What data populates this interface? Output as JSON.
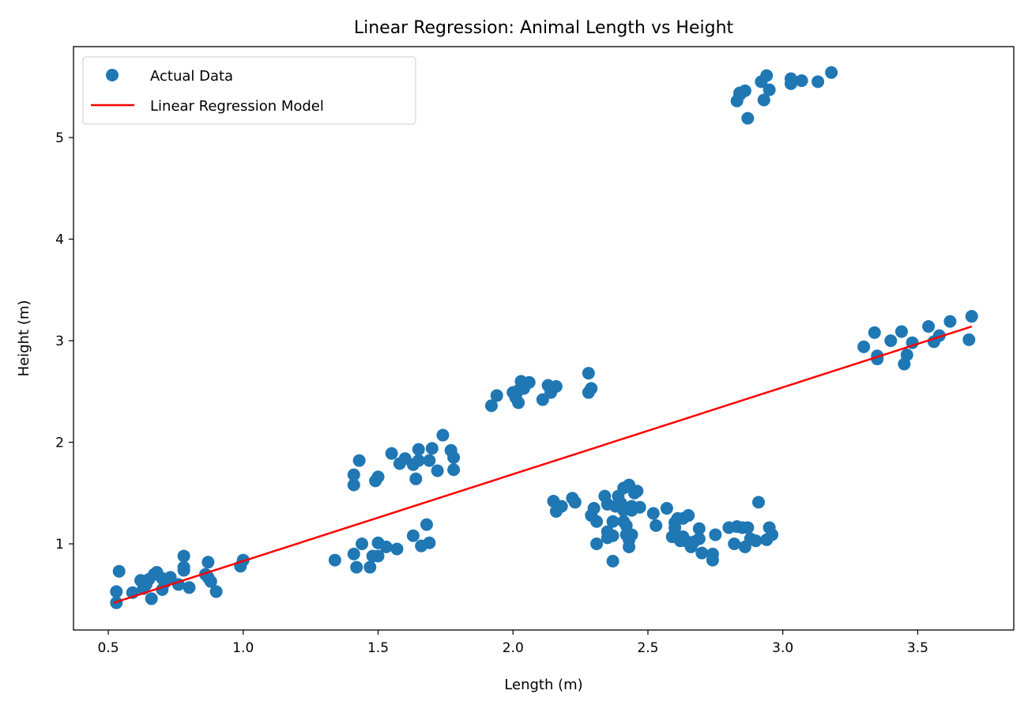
{
  "chart_data": {
    "type": "scatter",
    "title": "Linear Regression: Animal Length vs Height",
    "xlabel": "Length (m)",
    "ylabel": "Height (m)",
    "xlim": [
      0.371,
      3.856
    ],
    "ylim": [
      0.152,
      5.895
    ],
    "xticks": [
      0.5,
      1.0,
      1.5,
      2.0,
      2.5,
      3.0,
      3.5
    ],
    "xtick_labels": [
      "0.5",
      "1.0",
      "1.5",
      "2.0",
      "2.5",
      "3.0",
      "3.5"
    ],
    "yticks": [
      1,
      2,
      3,
      4,
      5
    ],
    "ytick_labels": [
      "1",
      "2",
      "3",
      "4",
      "5"
    ],
    "grid": false,
    "legend": {
      "placement": "top-left",
      "entries": [
        "Actual Data",
        "Linear Regression Model"
      ]
    },
    "series": [
      {
        "name": "Actual Data",
        "kind": "scatter",
        "color": "#1f77b4",
        "points": [
          [
            0.53,
            0.42
          ],
          [
            0.53,
            0.53
          ],
          [
            0.54,
            0.73
          ],
          [
            0.59,
            0.52
          ],
          [
            0.62,
            0.64
          ],
          [
            0.64,
            0.6
          ],
          [
            0.65,
            0.65
          ],
          [
            0.66,
            0.46
          ],
          [
            0.67,
            0.7
          ],
          [
            0.68,
            0.72
          ],
          [
            0.7,
            0.55
          ],
          [
            0.71,
            0.62
          ],
          [
            0.73,
            0.67
          ],
          [
            0.76,
            0.6
          ],
          [
            0.78,
            0.74
          ],
          [
            0.78,
            0.88
          ],
          [
            0.78,
            0.77
          ],
          [
            0.8,
            0.57
          ],
          [
            0.87,
            0.82
          ],
          [
            0.86,
            0.7
          ],
          [
            0.87,
            0.67
          ],
          [
            0.88,
            0.63
          ],
          [
            0.9,
            0.53
          ],
          [
            0.99,
            0.78
          ],
          [
            1.0,
            0.84
          ],
          [
            0.63,
            0.56
          ],
          [
            0.7,
            0.66
          ],
          [
            1.34,
            0.84
          ],
          [
            1.41,
            0.9
          ],
          [
            1.42,
            0.77
          ],
          [
            1.44,
            1.0
          ],
          [
            1.47,
            0.77
          ],
          [
            1.48,
            0.88
          ],
          [
            1.5,
            0.88
          ],
          [
            1.5,
            1.01
          ],
          [
            1.53,
            0.97
          ],
          [
            1.57,
            0.95
          ],
          [
            1.63,
            1.08
          ],
          [
            1.66,
            0.98
          ],
          [
            1.68,
            1.19
          ],
          [
            1.69,
            1.01
          ],
          [
            1.41,
            1.68
          ],
          [
            1.41,
            1.58
          ],
          [
            1.43,
            1.82
          ],
          [
            1.49,
            1.62
          ],
          [
            1.5,
            1.66
          ],
          [
            1.55,
            1.89
          ],
          [
            1.58,
            1.79
          ],
          [
            1.6,
            1.84
          ],
          [
            1.63,
            1.78
          ],
          [
            1.64,
            1.64
          ],
          [
            1.65,
            1.93
          ],
          [
            1.65,
            1.82
          ],
          [
            1.69,
            1.82
          ],
          [
            1.7,
            1.94
          ],
          [
            1.72,
            1.72
          ],
          [
            1.74,
            2.07
          ],
          [
            1.77,
            1.92
          ],
          [
            1.78,
            1.85
          ],
          [
            1.78,
            1.73
          ],
          [
            1.92,
            2.36
          ],
          [
            1.94,
            2.46
          ],
          [
            2.0,
            2.49
          ],
          [
            2.01,
            2.44
          ],
          [
            2.02,
            2.51
          ],
          [
            2.02,
            2.39
          ],
          [
            2.03,
            2.6
          ],
          [
            2.04,
            2.53
          ],
          [
            2.06,
            2.59
          ],
          [
            2.11,
            2.42
          ],
          [
            2.13,
            2.56
          ],
          [
            2.14,
            2.49
          ],
          [
            2.16,
            2.55
          ],
          [
            2.28,
            2.68
          ],
          [
            2.28,
            2.49
          ],
          [
            2.29,
            2.53
          ],
          [
            2.15,
            1.42
          ],
          [
            2.16,
            1.32
          ],
          [
            2.18,
            1.37
          ],
          [
            2.22,
            1.45
          ],
          [
            2.23,
            1.41
          ],
          [
            2.29,
            1.28
          ],
          [
            2.3,
            1.35
          ],
          [
            2.31,
            1.22
          ],
          [
            2.31,
            1.0
          ],
          [
            2.34,
            1.47
          ],
          [
            2.35,
            1.12
          ],
          [
            2.35,
            1.06
          ],
          [
            2.35,
            1.39
          ],
          [
            2.37,
            0.83
          ],
          [
            2.37,
            1.22
          ],
          [
            2.37,
            1.08
          ],
          [
            2.38,
            1.37
          ],
          [
            2.39,
            1.47
          ],
          [
            2.4,
            1.4
          ],
          [
            2.41,
            1.55
          ],
          [
            2.41,
            1.22
          ],
          [
            2.41,
            1.33
          ],
          [
            2.42,
            1.09
          ],
          [
            2.42,
            1.18
          ],
          [
            2.43,
            1.58
          ],
          [
            2.43,
            1.04
          ],
          [
            2.44,
            1.37
          ],
          [
            2.43,
            0.97
          ],
          [
            2.44,
            1.09
          ],
          [
            2.45,
            1.5
          ],
          [
            2.44,
            1.33
          ],
          [
            2.46,
            1.52
          ],
          [
            2.47,
            1.36
          ],
          [
            2.52,
            1.3
          ],
          [
            2.53,
            1.18
          ],
          [
            2.57,
            1.35
          ],
          [
            2.59,
            1.07
          ],
          [
            2.6,
            1.21
          ],
          [
            2.6,
            1.16
          ],
          [
            2.6,
            1.1
          ],
          [
            2.61,
            1.25
          ],
          [
            2.62,
            1.03
          ],
          [
            2.63,
            1.25
          ],
          [
            2.63,
            1.07
          ],
          [
            2.64,
            1.03
          ],
          [
            2.65,
            1.28
          ],
          [
            2.66,
            0.97
          ],
          [
            2.67,
            1.02
          ],
          [
            2.69,
            1.15
          ],
          [
            2.69,
            1.05
          ],
          [
            2.7,
            0.91
          ],
          [
            2.74,
            0.9
          ],
          [
            2.74,
            0.84
          ],
          [
            2.75,
            1.09
          ],
          [
            2.8,
            1.16
          ],
          [
            2.82,
            1.0
          ],
          [
            2.83,
            1.17
          ],
          [
            2.85,
            1.16
          ],
          [
            2.87,
            1.16
          ],
          [
            2.86,
            0.97
          ],
          [
            2.88,
            1.05
          ],
          [
            2.91,
            1.41
          ],
          [
            2.94,
            1.04
          ],
          [
            2.95,
            1.16
          ],
          [
            2.96,
            1.09
          ],
          [
            2.9,
            1.03
          ],
          [
            2.83,
            5.36
          ],
          [
            2.84,
            5.42
          ],
          [
            2.84,
            5.44
          ],
          [
            2.86,
            5.46
          ],
          [
            2.87,
            5.19
          ],
          [
            2.92,
            5.55
          ],
          [
            2.93,
            5.37
          ],
          [
            2.94,
            5.61
          ],
          [
            2.95,
            5.47
          ],
          [
            3.03,
            5.53
          ],
          [
            3.03,
            5.58
          ],
          [
            3.07,
            5.56
          ],
          [
            3.13,
            5.55
          ],
          [
            3.18,
            5.64
          ],
          [
            3.3,
            2.94
          ],
          [
            3.34,
            3.08
          ],
          [
            3.35,
            2.85
          ],
          [
            3.35,
            2.82
          ],
          [
            3.4,
            3.0
          ],
          [
            3.44,
            3.09
          ],
          [
            3.45,
            2.77
          ],
          [
            3.46,
            2.86
          ],
          [
            3.48,
            2.98
          ],
          [
            3.54,
            3.14
          ],
          [
            3.56,
            2.99
          ],
          [
            3.58,
            3.05
          ],
          [
            3.62,
            3.19
          ],
          [
            3.69,
            3.01
          ],
          [
            3.7,
            3.24
          ]
        ]
      },
      {
        "name": "Linear Regression Model",
        "kind": "line",
        "color": "#ff0000",
        "points": [
          [
            0.52,
            0.42
          ],
          [
            3.7,
            3.14
          ]
        ]
      }
    ]
  }
}
